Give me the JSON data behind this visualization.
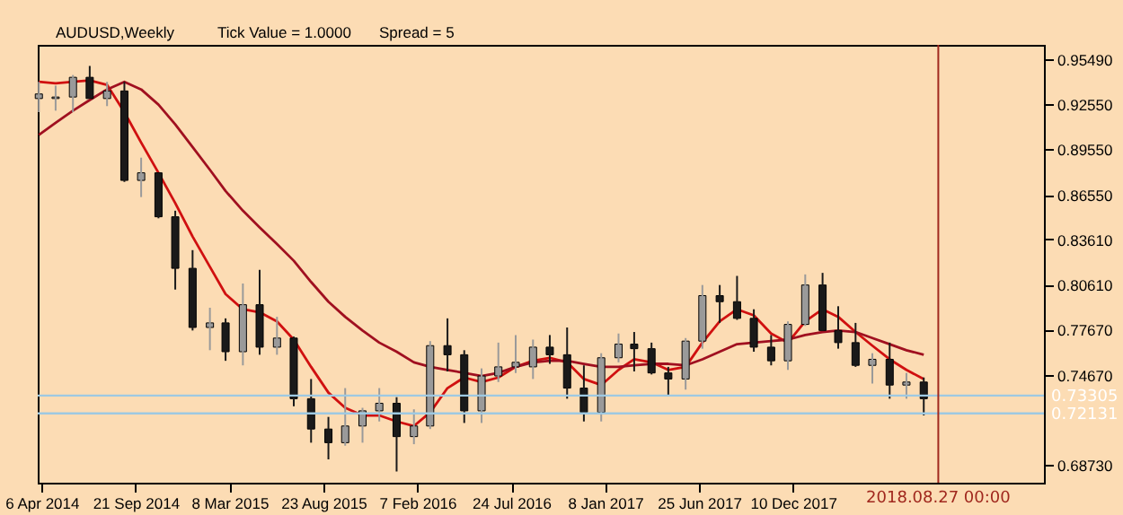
{
  "chart_data": {
    "type": "candlestick",
    "title": "AUDUSD,Weekly",
    "annotations": [
      "Tick Value = 1.0000",
      "Spread = 5"
    ],
    "colors": [
      "#9a9a9a",
      "#9a9a9a",
      "#9a9a9a",
      "#1a1a1a",
      "#9a9a9a",
      "#1a1a1a",
      "#9a9a9a",
      "#1a1a1a",
      "#1a1a1a",
      "#1a1a1a",
      "#9a9a9a",
      "#1a1a1a",
      "#9a9a9a",
      "#1a1a1a",
      "#9a9a9a",
      "#1a1a1a",
      "#1a1a1a",
      "#1a1a1a",
      "#9a9a9a",
      "#9a9a9a",
      "#9a9a9a",
      "#1a1a1a",
      "#9a9a9a",
      "#9a9a9a",
      "#1a1a1a",
      "#1a1a1a",
      "#9a9a9a",
      "#9a9a9a",
      "#9a9a9a",
      "#9a9a9a",
      "#1a1a1a",
      "#1a1a1a",
      "#1a1a1a",
      "#9a9a9a",
      "#9a9a9a",
      "#1a1a1a",
      "#1a1a1a",
      "#1a1a1a",
      "#9a9a9a",
      "#9a9a9a",
      "#1a1a1a",
      "#1a1a1a",
      "#1a1a1a",
      "#1a1a1a",
      "#9a9a9a",
      "#9a9a9a",
      "#1a1a1a",
      "#1a1a1a",
      "#1a1a1a",
      "#9a9a9a",
      "#1a1a1a",
      "#9a9a9a",
      "#1a1a1a"
    ],
    "x": [
      "2014-04",
      "2014-05",
      "2014-06",
      "2014-07",
      "2014-08",
      "2014-09",
      "2014-10",
      "2014-11",
      "2014-12",
      "2015-01",
      "2015-02",
      "2015-03",
      "2015-04",
      "2015-05",
      "2015-06",
      "2015-07",
      "2015-08",
      "2015-09",
      "2015-10",
      "2015-11",
      "2015-12",
      "2016-01",
      "2016-02",
      "2016-03",
      "2016-04",
      "2016-05",
      "2016-06",
      "2016-07",
      "2016-08",
      "2016-09",
      "2016-10",
      "2016-11",
      "2016-12",
      "2017-01",
      "2017-02",
      "2017-03",
      "2017-04",
      "2017-05",
      "2017-06",
      "2017-07",
      "2017-08",
      "2017-09",
      "2017-10",
      "2017-11",
      "2017-12",
      "2018-01",
      "2018-02",
      "2018-03",
      "2018-04",
      "2018-05",
      "2018-06",
      "2018-07",
      "2018-08"
    ],
    "ohlc": [
      [
        0.929,
        0.94,
        0.92,
        0.932
      ],
      [
        0.929,
        0.9375,
        0.921,
        0.93
      ],
      [
        0.93,
        0.9445,
        0.92,
        0.943
      ],
      [
        0.943,
        0.9505,
        0.929,
        0.929
      ],
      [
        0.929,
        0.94,
        0.924,
        0.934
      ],
      [
        0.934,
        0.94,
        0.874,
        0.875
      ],
      [
        0.875,
        0.89,
        0.864,
        0.88
      ],
      [
        0.88,
        0.88,
        0.85,
        0.851
      ],
      [
        0.851,
        0.855,
        0.803,
        0.817
      ],
      [
        0.817,
        0.829,
        0.776,
        0.778
      ],
      [
        0.778,
        0.791,
        0.763,
        0.781
      ],
      [
        0.781,
        0.784,
        0.756,
        0.762
      ],
      [
        0.762,
        0.807,
        0.753,
        0.793
      ],
      [
        0.793,
        0.816,
        0.76,
        0.765
      ],
      [
        0.765,
        0.785,
        0.76,
        0.771
      ],
      [
        0.771,
        0.772,
        0.726,
        0.731
      ],
      [
        0.731,
        0.744,
        0.702,
        0.711
      ],
      [
        0.711,
        0.719,
        0.691,
        0.702
      ],
      [
        0.702,
        0.738,
        0.7,
        0.713
      ],
      [
        0.713,
        0.725,
        0.702,
        0.723
      ],
      [
        0.723,
        0.738,
        0.716,
        0.728
      ],
      [
        0.728,
        0.732,
        0.683,
        0.706
      ],
      [
        0.706,
        0.724,
        0.701,
        0.713
      ],
      [
        0.713,
        0.769,
        0.711,
        0.766
      ],
      [
        0.766,
        0.784,
        0.749,
        0.76
      ],
      [
        0.76,
        0.763,
        0.715,
        0.723
      ],
      [
        0.723,
        0.751,
        0.715,
        0.746
      ],
      [
        0.746,
        0.768,
        0.742,
        0.752
      ],
      [
        0.752,
        0.773,
        0.748,
        0.755
      ],
      [
        0.752,
        0.77,
        0.744,
        0.765
      ],
      [
        0.765,
        0.773,
        0.754,
        0.76
      ],
      [
        0.76,
        0.778,
        0.731,
        0.738
      ],
      [
        0.738,
        0.753,
        0.716,
        0.722
      ],
      [
        0.722,
        0.761,
        0.716,
        0.758
      ],
      [
        0.758,
        0.774,
        0.755,
        0.767
      ],
      [
        0.767,
        0.775,
        0.749,
        0.764
      ],
      [
        0.764,
        0.768,
        0.747,
        0.748
      ],
      [
        0.748,
        0.752,
        0.733,
        0.744
      ],
      [
        0.744,
        0.771,
        0.737,
        0.769
      ],
      [
        0.769,
        0.806,
        0.764,
        0.799
      ],
      [
        0.799,
        0.806,
        0.781,
        0.795
      ],
      [
        0.795,
        0.812,
        0.783,
        0.784
      ],
      [
        0.784,
        0.79,
        0.762,
        0.765
      ],
      [
        0.765,
        0.773,
        0.753,
        0.756
      ],
      [
        0.756,
        0.782,
        0.75,
        0.78
      ],
      [
        0.78,
        0.813,
        0.779,
        0.806
      ],
      [
        0.806,
        0.814,
        0.776,
        0.776
      ],
      [
        0.776,
        0.792,
        0.764,
        0.768
      ],
      [
        0.768,
        0.781,
        0.752,
        0.753
      ],
      [
        0.753,
        0.761,
        0.741,
        0.757
      ],
      [
        0.757,
        0.768,
        0.731,
        0.74
      ],
      [
        0.74,
        0.748,
        0.731,
        0.742
      ],
      [
        0.742,
        0.745,
        0.72,
        0.731
      ]
    ],
    "series": [
      {
        "type": "line",
        "color": "#d01010",
        "values": [
          0.94,
          0.939,
          0.94,
          0.941,
          0.938,
          0.92,
          0.9,
          0.88,
          0.86,
          0.838,
          0.818,
          0.8,
          0.79,
          0.788,
          0.782,
          0.77,
          0.752,
          0.735,
          0.725,
          0.72,
          0.72,
          0.716,
          0.713,
          0.722,
          0.738,
          0.745,
          0.742,
          0.745,
          0.752,
          0.756,
          0.758,
          0.755,
          0.744,
          0.74,
          0.75,
          0.757,
          0.755,
          0.75,
          0.752,
          0.768,
          0.782,
          0.79,
          0.786,
          0.774,
          0.768,
          0.782,
          0.79,
          0.785,
          0.775,
          0.766,
          0.757,
          0.75,
          0.744
        ]
      },
      {
        "type": "line",
        "color": "#a01020",
        "values": [
          0.905,
          0.913,
          0.921,
          0.928,
          0.935,
          0.94,
          0.935,
          0.925,
          0.912,
          0.897,
          0.882,
          0.868,
          0.855,
          0.844,
          0.833,
          0.822,
          0.808,
          0.795,
          0.785,
          0.776,
          0.768,
          0.762,
          0.755,
          0.752,
          0.75,
          0.748,
          0.746,
          0.748,
          0.752,
          0.755,
          0.756,
          0.756,
          0.754,
          0.752,
          0.752,
          0.753,
          0.754,
          0.754,
          0.753,
          0.757,
          0.762,
          0.767,
          0.768,
          0.769,
          0.77,
          0.773,
          0.775,
          0.776,
          0.775,
          0.771,
          0.767,
          0.763,
          0.76
        ]
      }
    ],
    "xlim": [
      "2014-03-30",
      "2019-03-04"
    ],
    "xticks": [
      {
        "value": "2014-04-06",
        "label": "6 Apr 2014"
      },
      {
        "value": "2014-09-21",
        "label": "21 Sep 2014"
      },
      {
        "value": "2015-03-08",
        "label": "8 Mar 2015"
      },
      {
        "value": "2015-08-23",
        "label": "23 Aug 2015"
      },
      {
        "value": "2016-02-07",
        "label": "7 Feb 2016"
      },
      {
        "value": "2016-07-24",
        "label": "24 Jul 2016"
      },
      {
        "value": "2017-01-08",
        "label": "8 Jan 2017"
      },
      {
        "value": "2017-06-25",
        "label": "25 Jun 2017"
      },
      {
        "value": "2017-12-10",
        "label": "10 Dec 2017"
      }
    ],
    "ylim": [
      0.6756,
      0.9644
    ],
    "yticks": [
      {
        "value": 0.6873,
        "label": "0.68730"
      },
      {
        "value": 0.7467,
        "label": "0.74670"
      },
      {
        "value": 0.7767,
        "label": "0.77670"
      },
      {
        "value": 0.8061,
        "label": "0.80610"
      },
      {
        "value": 0.8361,
        "label": "0.83610"
      },
      {
        "value": 0.8655,
        "label": "0.86550"
      },
      {
        "value": 0.8955,
        "label": "0.89550"
      },
      {
        "value": 0.9255,
        "label": "0.92550"
      },
      {
        "value": 0.9549,
        "label": "0.95490"
      }
    ],
    "ref_lines": [
      {
        "axis": "y",
        "value": 0.73305,
        "label": "0.73305",
        "color": "#9ec9e2"
      },
      {
        "axis": "y",
        "value": 0.72131,
        "label": "0.72131",
        "color": "#9ec9e2"
      },
      {
        "axis": "x",
        "value": "2018-08-27",
        "label": "2018.08.27 00:00",
        "color": "#a0281e"
      }
    ]
  }
}
